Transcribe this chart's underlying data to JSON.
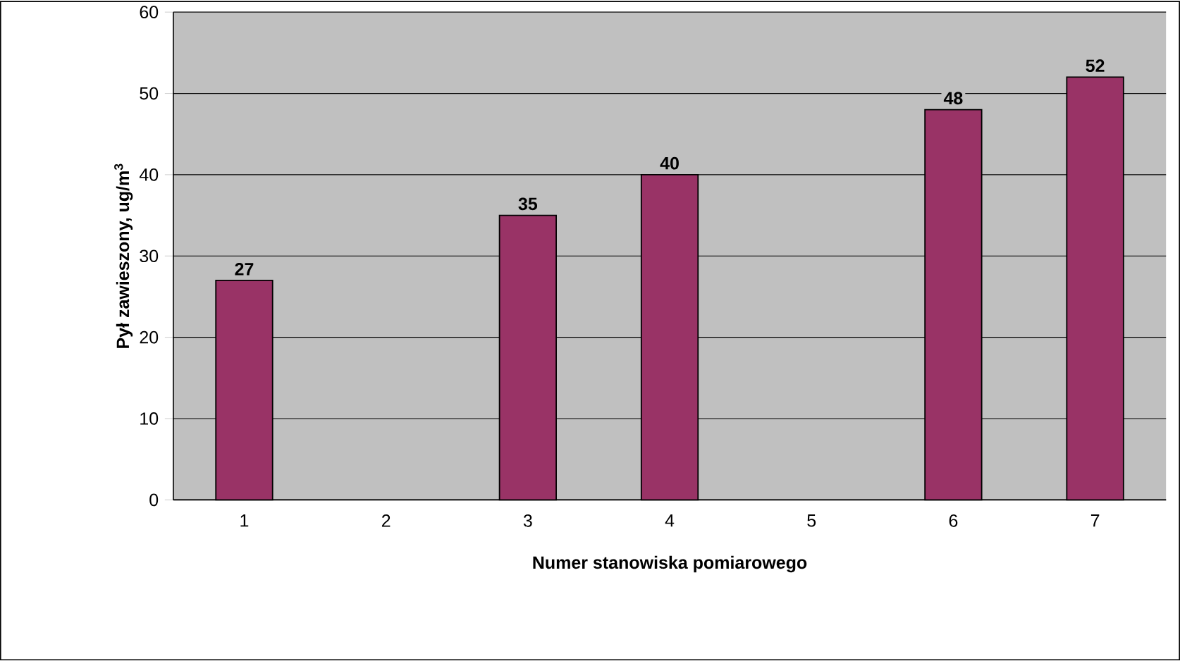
{
  "chart_data": {
    "type": "bar",
    "xlabel": "Numer stanowiska pomiarowego",
    "ylabel": "Pył zawieszony, ug/m$^{3}$",
    "categories": [
      "1",
      "2",
      "3",
      "4",
      "5",
      "6",
      "7"
    ],
    "values": [
      27,
      null,
      35,
      40,
      null,
      48,
      52
    ],
    "color": "#993366",
    "ylim": [
      0,
      60
    ],
    "yticks": [
      0,
      10,
      20,
      30,
      40,
      50,
      60
    ],
    "grid": "y",
    "data_labels": true
  }
}
